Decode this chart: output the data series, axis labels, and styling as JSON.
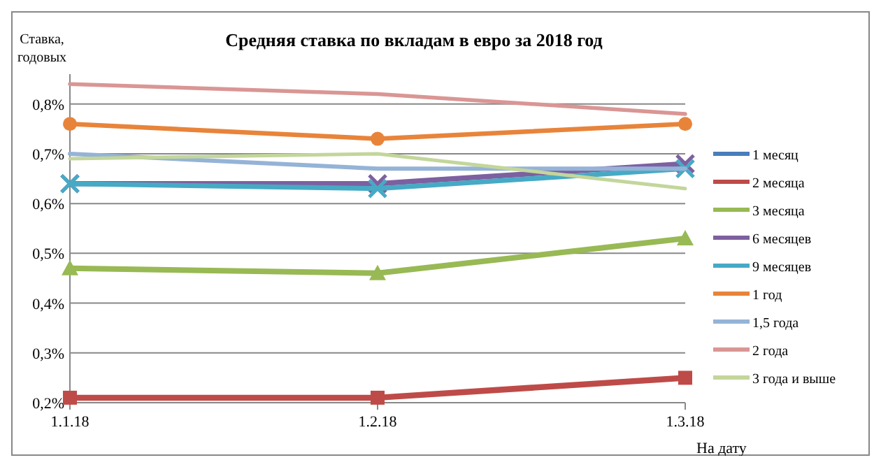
{
  "chart_data": {
    "type": "line",
    "title": "Средняя ставка по вкладам в евро за 2018 год",
    "ylabel": "Ставка,\nгодовых",
    "xlabel": "На дату",
    "categories": [
      "1.1.18",
      "1.2.18",
      "1.3.18"
    ],
    "ylim": [
      0.2,
      0.86
    ],
    "yticks": [
      {
        "value": 0.2,
        "label": "0,2%"
      },
      {
        "value": 0.3,
        "label": "0,3%"
      },
      {
        "value": 0.4,
        "label": "0,4%"
      },
      {
        "value": 0.5,
        "label": "0,5%"
      },
      {
        "value": 0.6,
        "label": "0,6%"
      },
      {
        "value": 0.7,
        "label": "0,7%"
      },
      {
        "value": 0.8,
        "label": "0,8%"
      }
    ],
    "grid": "y",
    "legend": "right",
    "line_style": "solid",
    "series": [
      {
        "name": "1 месяц",
        "color": "#4a7ebb",
        "marker": "diamond",
        "values": [
          null,
          null,
          null
        ]
      },
      {
        "name": "2 месяца",
        "color": "#be4b48",
        "marker": "square",
        "values": [
          0.21,
          0.21,
          0.25
        ]
      },
      {
        "name": "3 месяца",
        "color": "#98b954",
        "marker": "triangle",
        "values": [
          0.47,
          0.46,
          0.53
        ]
      },
      {
        "name": "6 месяцев",
        "color": "#7d60a0",
        "marker": "cross",
        "values": [
          0.64,
          0.64,
          0.68
        ]
      },
      {
        "name": "9 месяцев",
        "color": "#46aac5",
        "marker": "cross",
        "values": [
          0.64,
          0.63,
          0.67
        ]
      },
      {
        "name": "1 год",
        "color": "#e8843a",
        "marker": "circle",
        "values": [
          0.76,
          0.73,
          0.76
        ]
      },
      {
        "name": "1,5 года",
        "color": "#95b3d7",
        "marker": "none",
        "values": [
          0.7,
          0.67,
          0.67
        ]
      },
      {
        "name": "2 года",
        "color": "#d99694",
        "marker": "none",
        "values": [
          0.84,
          0.82,
          0.78
        ]
      },
      {
        "name": "3 года и выше",
        "color": "#c3d69b",
        "marker": "none",
        "values": [
          0.69,
          0.7,
          0.63
        ]
      }
    ]
  }
}
